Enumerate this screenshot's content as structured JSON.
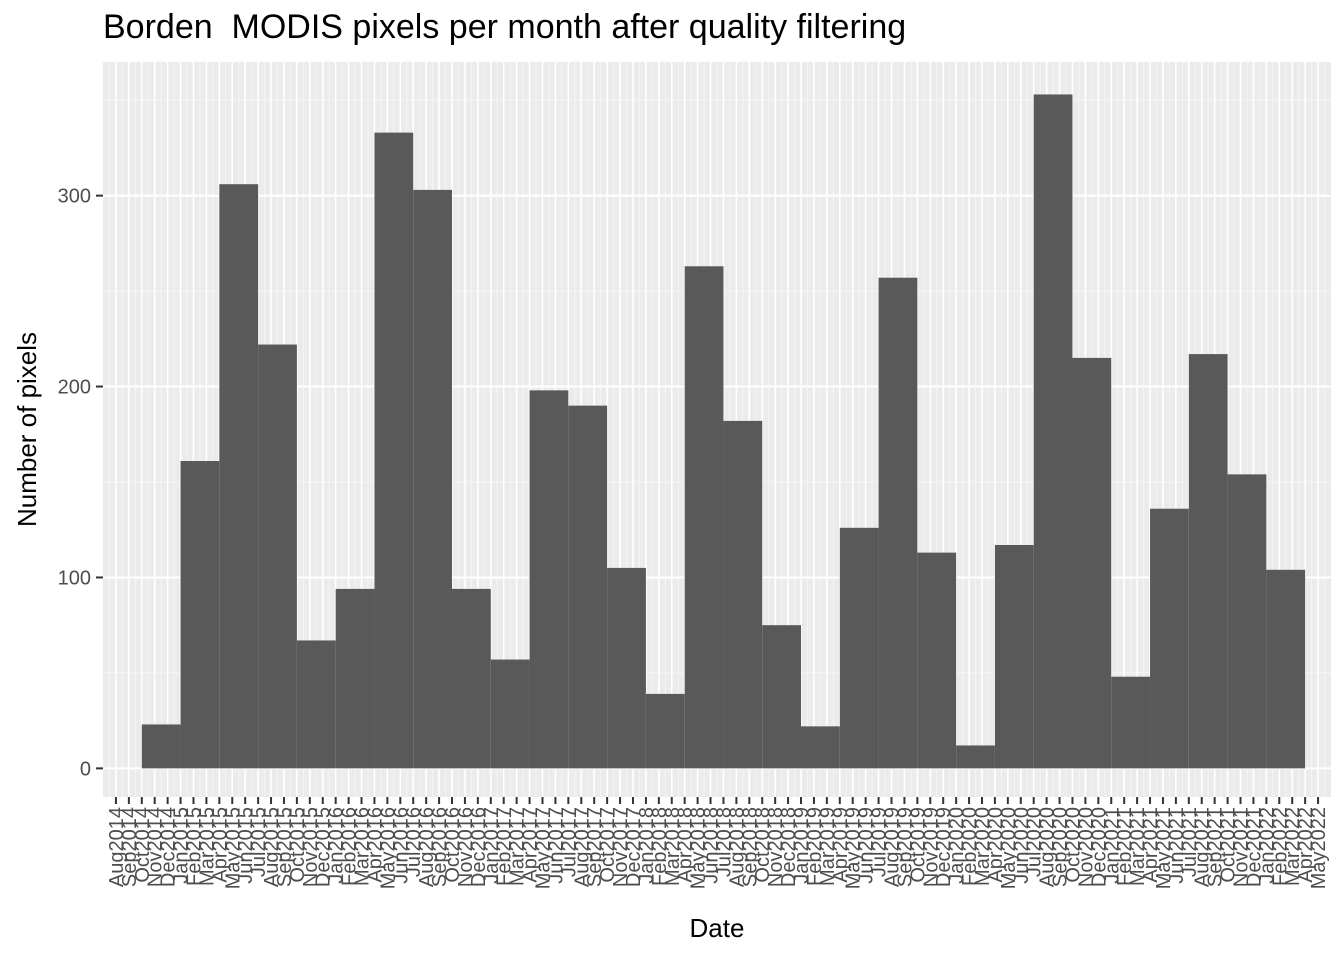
{
  "chart_data": {
    "type": "bar",
    "title": "Borden  MODIS pixels per month after quality filtering",
    "xlabel": "Date",
    "ylabel": "Number of pixels",
    "ylim": [
      -15,
      370
    ],
    "y_ticks": [
      0,
      100,
      200,
      300
    ],
    "grid": true,
    "x_tick_labels": [
      "Aug2014",
      "Sep2014",
      "Oct2014",
      "Nov2014",
      "Dec2014",
      "Jan2015",
      "Feb2015",
      "Mar2015",
      "Apr2015",
      "May2015",
      "Jun2015",
      "Jul2015",
      "Aug2015",
      "Sep2015",
      "Oct2015",
      "Nov2015",
      "Dec2015",
      "Jan2016",
      "Feb2016",
      "Mar2016",
      "Apr2016",
      "May2016",
      "Jun2016",
      "Jul2016",
      "Aug2016",
      "Sep2016",
      "Oct2016",
      "Nov2016",
      "Dec2016",
      "Jan2017",
      "Feb2017",
      "Mar2017",
      "Apr2017",
      "May2017",
      "Jun2017",
      "Jul2017",
      "Aug2017",
      "Sep2017",
      "Oct2017",
      "Nov2017",
      "Dec2017",
      "Jan2018",
      "Feb2018",
      "Mar2018",
      "Apr2018",
      "May2018",
      "Jun2018",
      "Jul2018",
      "Aug2018",
      "Sep2018",
      "Oct2018",
      "Nov2018",
      "Dec2018",
      "Jan2019",
      "Feb2019",
      "Mar2019",
      "Apr2019",
      "May2019",
      "Jun2019",
      "Jul2019",
      "Aug2019",
      "Sep2019",
      "Oct2019",
      "Nov2019",
      "Dec2019",
      "Jan2020",
      "Feb2020",
      "Mar2020",
      "Apr2020",
      "May2020",
      "Jun2020",
      "Jul2020",
      "Aug2020",
      "Sep2020",
      "Oct2020",
      "Nov2020",
      "Dec2020",
      "Jan2021",
      "Feb2021",
      "Mar2021",
      "Apr2021",
      "May2021",
      "Jun2021",
      "Jul2021",
      "Aug2021",
      "Sep2021",
      "Oct2021",
      "Nov2021",
      "Dec2021",
      "Jan2022",
      "Feb2022",
      "Mar2022",
      "Apr2022",
      "May2022"
    ],
    "bins": [
      {
        "start": "Oct2014",
        "end": "Jan2015",
        "value": 23
      },
      {
        "start": "Jan2015",
        "end": "Apr2015",
        "value": 161
      },
      {
        "start": "Apr2015",
        "end": "Jul2015",
        "value": 306
      },
      {
        "start": "Jul2015",
        "end": "Oct2015",
        "value": 222
      },
      {
        "start": "Oct2015",
        "end": "Jan2016",
        "value": 67
      },
      {
        "start": "Jan2016",
        "end": "Apr2016",
        "value": 94
      },
      {
        "start": "Apr2016",
        "end": "Jul2016",
        "value": 333
      },
      {
        "start": "Jul2016",
        "end": "Oct2016",
        "value": 303
      },
      {
        "start": "Oct2016",
        "end": "Jan2017",
        "value": 94
      },
      {
        "start": "Jan2017",
        "end": "Apr2017",
        "value": 57
      },
      {
        "start": "Apr2017",
        "end": "Jul2017",
        "value": 198
      },
      {
        "start": "Jul2017",
        "end": "Oct2017",
        "value": 190
      },
      {
        "start": "Oct2017",
        "end": "Jan2018",
        "value": 105
      },
      {
        "start": "Jan2018",
        "end": "Apr2018",
        "value": 39
      },
      {
        "start": "Apr2018",
        "end": "Jul2018",
        "value": 263
      },
      {
        "start": "Jul2018",
        "end": "Oct2018",
        "value": 182
      },
      {
        "start": "Oct2018",
        "end": "Jan2019",
        "value": 75
      },
      {
        "start": "Jan2019",
        "end": "Apr2019",
        "value": 22
      },
      {
        "start": "Apr2019",
        "end": "Jul2019",
        "value": 126
      },
      {
        "start": "Jul2019",
        "end": "Oct2019",
        "value": 257
      },
      {
        "start": "Oct2019",
        "end": "Jan2020",
        "value": 113
      },
      {
        "start": "Jan2020",
        "end": "Apr2020",
        "value": 12
      },
      {
        "start": "Apr2020",
        "end": "Jul2020",
        "value": 117
      },
      {
        "start": "Jul2020",
        "end": "Oct2020",
        "value": 353
      },
      {
        "start": "Oct2020",
        "end": "Jan2021",
        "value": 215
      },
      {
        "start": "Jan2021",
        "end": "Apr2021",
        "value": 48
      },
      {
        "start": "Apr2021",
        "end": "Jul2021",
        "value": 136
      },
      {
        "start": "Jul2021",
        "end": "Oct2021",
        "value": 217
      },
      {
        "start": "Oct2021",
        "end": "Jan2022",
        "value": 154
      },
      {
        "start": "Jan2022",
        "end": "Apr2022",
        "value": 104
      }
    ],
    "colors": {
      "bar": "#595959",
      "panel_background": "#ebebeb",
      "grid_major": "#ffffff",
      "grid_minor": "#f5f5f5",
      "tick": "#333333",
      "tick_label": "#4d4d4d"
    }
  }
}
